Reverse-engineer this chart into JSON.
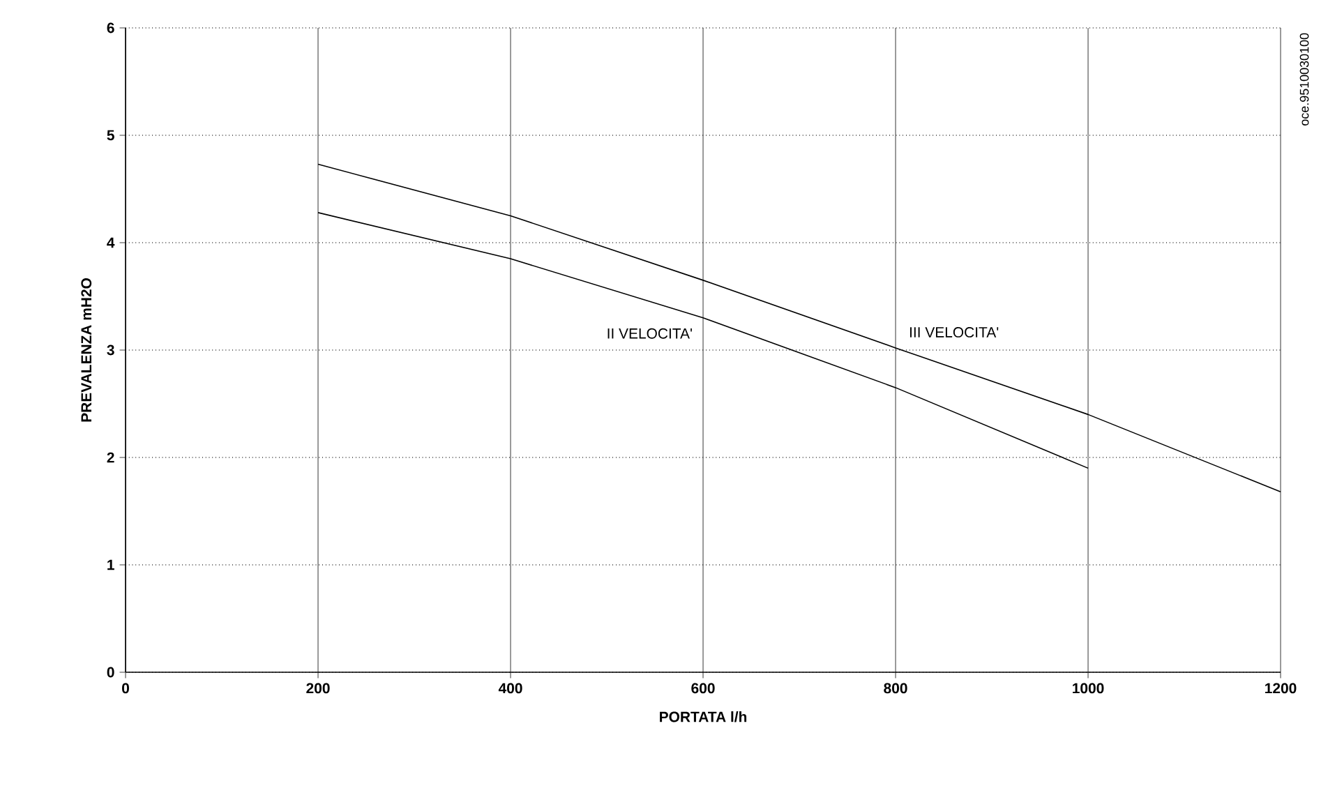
{
  "chart_data": {
    "type": "line",
    "xlabel": "PORTATA l/h",
    "ylabel": "PREVALENZA mH2O",
    "xlim": [
      0,
      1200
    ],
    "xticks": [
      0,
      200,
      400,
      600,
      800,
      1000,
      1200
    ],
    "ylim": [
      0,
      6
    ],
    "yticks": [
      0,
      1,
      2,
      3,
      4,
      5,
      6
    ],
    "grid": true,
    "marker": "none",
    "line_style": "solid",
    "series": [
      {
        "name": "II VELOCITA'",
        "color": "#000000",
        "x": [
          200,
          400,
          600,
          800,
          1000
        ],
        "values": [
          4.28,
          3.85,
          3.3,
          2.65,
          1.9
        ]
      },
      {
        "name": "III VELOCITA'",
        "color": "#000000",
        "x": [
          200,
          400,
          600,
          800,
          1000,
          1200
        ],
        "values": [
          4.73,
          4.25,
          3.65,
          3.02,
          2.4,
          1.68
        ]
      }
    ],
    "annotations": [
      "oce.9510030100"
    ]
  }
}
